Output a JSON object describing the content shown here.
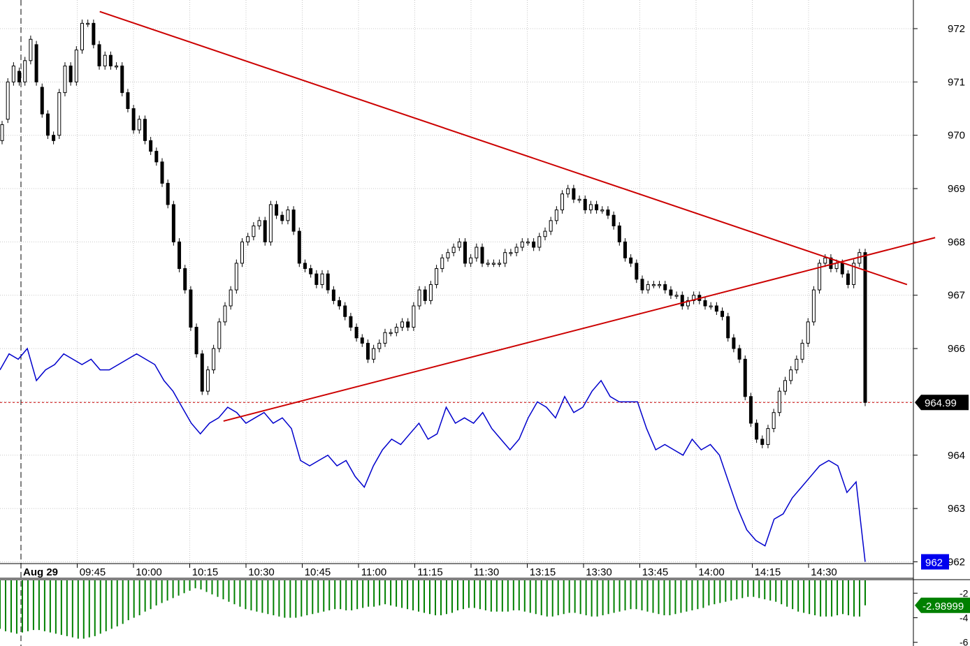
{
  "chart_data": {
    "type": "candlestick",
    "main": {
      "y_ticks": [
        962,
        963,
        964,
        965,
        966,
        967,
        968,
        969,
        970,
        971,
        972
      ],
      "y_tick_labels": [
        "962",
        "963",
        "964",
        "966",
        "967",
        "968",
        "969",
        "970",
        "971",
        "972"
      ],
      "ylim": [
        961.98,
        972.55
      ],
      "grid": true,
      "last_price": 964.99,
      "last_price_label": "964.99",
      "secondary_label": "962",
      "trendlines": [
        {
          "name": "resistance",
          "from": [
            1.4,
            972.32
          ],
          "to": [
            15.75,
            967.2
          ],
          "color": "#cc0000"
        },
        {
          "name": "support",
          "from": [
            3.6,
            964.64
          ],
          "to": [
            16.25,
            968.08
          ],
          "color": "#cc0000"
        }
      ],
      "candles": [
        [
          969.9,
          970.2
        ],
        [
          970.3,
          971.0
        ],
        [
          971.0,
          971.3
        ],
        [
          971.2,
          971.0
        ],
        [
          971.0,
          971.4
        ],
        [
          971.4,
          971.8
        ],
        [
          971.7,
          971.0
        ],
        [
          970.9,
          970.4
        ],
        [
          970.4,
          970.0
        ],
        [
          970.0,
          969.9
        ],
        [
          970.0,
          970.8
        ],
        [
          970.8,
          971.3
        ],
        [
          971.3,
          971.0
        ],
        [
          971.0,
          971.6
        ],
        [
          971.6,
          972.1
        ],
        [
          972.1,
          972.1
        ],
        [
          972.1,
          971.7
        ],
        [
          971.7,
          971.3
        ],
        [
          971.3,
          971.5
        ],
        [
          971.5,
          971.3
        ],
        [
          971.3,
          971.3
        ],
        [
          971.3,
          970.8
        ],
        [
          970.8,
          970.5
        ],
        [
          970.5,
          970.1
        ],
        [
          970.1,
          970.3
        ],
        [
          970.3,
          969.9
        ],
        [
          969.9,
          969.7
        ],
        [
          969.7,
          969.5
        ],
        [
          969.5,
          969.1
        ],
        [
          969.1,
          968.7
        ],
        [
          968.7,
          968.0
        ],
        [
          968.0,
          967.5
        ],
        [
          967.5,
          967.1
        ],
        [
          967.1,
          966.4
        ],
        [
          966.4,
          965.9
        ],
        [
          965.9,
          965.2
        ],
        [
          965.2,
          965.6
        ],
        [
          965.6,
          966.0
        ],
        [
          966.0,
          966.5
        ],
        [
          966.5,
          966.8
        ],
        [
          966.8,
          967.1
        ],
        [
          967.1,
          967.6
        ],
        [
          967.6,
          968.0
        ],
        [
          968.0,
          968.1
        ],
        [
          968.1,
          968.3
        ],
        [
          968.3,
          968.4
        ],
        [
          968.4,
          968.0
        ],
        [
          968.0,
          968.7
        ],
        [
          968.7,
          968.5
        ],
        [
          968.5,
          968.4
        ],
        [
          968.4,
          968.6
        ],
        [
          968.6,
          968.2
        ],
        [
          968.2,
          967.6
        ],
        [
          967.6,
          967.5
        ],
        [
          967.5,
          967.4
        ],
        [
          967.4,
          967.2
        ],
        [
          967.2,
          967.4
        ],
        [
          967.4,
          967.1
        ],
        [
          967.1,
          966.9
        ],
        [
          966.9,
          966.8
        ],
        [
          966.8,
          966.6
        ],
        [
          966.6,
          966.4
        ],
        [
          966.4,
          966.2
        ],
        [
          966.2,
          966.1
        ],
        [
          966.1,
          965.8
        ],
        [
          965.8,
          966.0
        ],
        [
          966.0,
          966.1
        ],
        [
          966.1,
          966.3
        ],
        [
          966.3,
          966.3
        ],
        [
          966.3,
          966.4
        ],
        [
          966.4,
          966.5
        ],
        [
          966.5,
          966.4
        ],
        [
          966.4,
          966.8
        ],
        [
          966.8,
          967.1
        ],
        [
          967.1,
          966.9
        ],
        [
          966.9,
          967.2
        ],
        [
          967.2,
          967.5
        ],
        [
          967.5,
          967.7
        ],
        [
          967.7,
          967.8
        ],
        [
          967.8,
          967.9
        ],
        [
          967.9,
          968.0
        ],
        [
          968.0,
          967.6
        ],
        [
          967.6,
          967.7
        ],
        [
          967.7,
          967.9
        ],
        [
          967.9,
          967.6
        ],
        [
          967.6,
          967.6
        ],
        [
          967.6,
          967.6
        ],
        [
          967.6,
          967.6
        ],
        [
          967.6,
          967.8
        ],
        [
          967.8,
          967.8
        ],
        [
          967.8,
          967.9
        ],
        [
          967.9,
          968.0
        ],
        [
          968.0,
          968.0
        ],
        [
          968.0,
          967.9
        ],
        [
          967.9,
          968.1
        ],
        [
          968.1,
          968.2
        ],
        [
          968.2,
          968.4
        ],
        [
          968.4,
          968.6
        ],
        [
          968.6,
          968.9
        ],
        [
          968.9,
          969.0
        ],
        [
          969.0,
          968.8
        ],
        [
          968.8,
          968.8
        ],
        [
          968.8,
          968.6
        ],
        [
          968.6,
          968.7
        ],
        [
          968.7,
          968.6
        ],
        [
          968.6,
          968.6
        ],
        [
          968.6,
          968.5
        ],
        [
          968.5,
          968.3
        ],
        [
          968.3,
          968.0
        ],
        [
          968.0,
          967.7
        ],
        [
          967.7,
          967.6
        ],
        [
          967.6,
          967.3
        ],
        [
          967.3,
          967.1
        ],
        [
          967.1,
          967.2
        ],
        [
          967.2,
          967.2
        ],
        [
          967.2,
          967.2
        ],
        [
          967.2,
          967.1
        ],
        [
          967.1,
          967.0
        ],
        [
          967.0,
          967.0
        ],
        [
          967.0,
          966.8
        ],
        [
          966.8,
          966.9
        ],
        [
          966.9,
          967.0
        ],
        [
          967.0,
          966.9
        ],
        [
          966.9,
          966.8
        ],
        [
          966.8,
          966.8
        ],
        [
          966.8,
          966.7
        ],
        [
          966.7,
          966.6
        ],
        [
          966.6,
          966.2
        ],
        [
          966.2,
          966.0
        ],
        [
          966.0,
          965.8
        ],
        [
          965.8,
          965.1
        ],
        [
          965.1,
          964.6
        ],
        [
          964.6,
          964.3
        ],
        [
          964.3,
          964.2
        ],
        [
          964.2,
          964.5
        ],
        [
          964.5,
          964.8
        ],
        [
          964.8,
          965.2
        ],
        [
          965.2,
          965.4
        ],
        [
          965.4,
          965.6
        ],
        [
          965.6,
          965.8
        ],
        [
          965.8,
          966.1
        ],
        [
          966.1,
          966.5
        ],
        [
          966.5,
          967.1
        ],
        [
          967.1,
          967.6
        ],
        [
          967.6,
          967.7
        ],
        [
          967.7,
          967.5
        ],
        [
          967.5,
          967.6
        ],
        [
          967.6,
          967.4
        ],
        [
          967.4,
          967.2
        ],
        [
          967.2,
          967.6
        ],
        [
          967.6,
          967.8
        ],
        [
          967.8,
          964.99
        ]
      ],
      "series": [
        {
          "name": "",
          "color": "#0000cc",
          "values": [
            965.6,
            965.9,
            965.8,
            966.0,
            965.4,
            965.6,
            965.7,
            965.9,
            965.8,
            965.7,
            965.8,
            965.6,
            965.6,
            965.7,
            965.8,
            965.9,
            965.8,
            965.7,
            965.4,
            965.2,
            964.9,
            964.6,
            964.4,
            964.6,
            964.7,
            964.9,
            964.8,
            964.6,
            964.7,
            964.8,
            964.6,
            964.7,
            964.5,
            963.9,
            963.8,
            963.9,
            964.0,
            963.8,
            963.9,
            963.6,
            963.4,
            963.8,
            964.1,
            964.3,
            964.2,
            964.4,
            964.6,
            964.3,
            964.4,
            964.9,
            964.6,
            964.7,
            964.6,
            964.8,
            964.5,
            964.3,
            964.1,
            964.3,
            964.7,
            965.0,
            964.9,
            964.7,
            965.1,
            964.8,
            964.9,
            965.2,
            965.4,
            965.1,
            965.0,
            965.0,
            965.0,
            964.5,
            964.1,
            964.2,
            964.1,
            964.0,
            964.3,
            964.1,
            964.2,
            964.0,
            963.5,
            963.0,
            962.6,
            962.4,
            962.3,
            962.8,
            962.9,
            963.2,
            963.4,
            963.6,
            963.8,
            963.9,
            963.8,
            963.3,
            963.5,
            962.0
          ]
        }
      ]
    },
    "x_ticks": [
      "Aug 29",
      "09:45",
      "10:00",
      "10:15",
      "10:30",
      "10:45",
      "11:00",
      "11:15",
      "11:30",
      "13:15",
      "13:30",
      "13:45",
      "14:00",
      "14:15",
      "14:30"
    ],
    "indicator": {
      "type": "bar",
      "color": "#008000",
      "y_ticks": [
        -2,
        -4,
        -6
      ],
      "y_tick_labels": [
        "-2",
        "-4",
        "-6"
      ],
      "ylim": [
        -6.3,
        -0.9
      ],
      "last_value_label": "-2.98999",
      "values": [
        -4.9,
        -5.1,
        -5.2,
        -5.3,
        -5.2,
        -5.1,
        -5.0,
        -5.0,
        -5.1,
        -5.2,
        -5.3,
        -5.4,
        -5.5,
        -5.6,
        -5.7,
        -5.7,
        -5.6,
        -5.5,
        -5.3,
        -5.1,
        -4.9,
        -4.7,
        -4.5,
        -4.2,
        -4.0,
        -3.8,
        -3.5,
        -3.3,
        -3.0,
        -2.8,
        -2.6,
        -2.4,
        -2.2,
        -2.0,
        -1.8,
        -1.6,
        -1.7,
        -1.9,
        -2.1,
        -2.3,
        -2.5,
        -2.7,
        -2.9,
        -3.1,
        -3.3,
        -3.4,
        -3.5,
        -3.6,
        -3.7,
        -3.8,
        -3.9,
        -4.0,
        -4.0,
        -4.0,
        -3.9,
        -3.8,
        -3.7,
        -3.6,
        -3.5,
        -3.4,
        -3.3,
        -3.3,
        -3.4,
        -3.4,
        -3.3,
        -3.2,
        -3.1,
        -3.1,
        -3.0,
        -2.9,
        -3.0,
        -3.1,
        -3.2,
        -3.3,
        -3.4,
        -3.5,
        -3.6,
        -3.7,
        -3.8,
        -3.8,
        -3.7,
        -3.6,
        -3.4,
        -3.3,
        -3.2,
        -3.2,
        -3.3,
        -3.4,
        -3.5,
        -3.5,
        -3.5,
        -3.5,
        -3.4,
        -3.4,
        -3.5,
        -3.6,
        -3.7,
        -3.8,
        -3.9,
        -3.9,
        -3.8,
        -3.7,
        -3.6,
        -3.6,
        -3.7,
        -3.8,
        -3.9,
        -3.9,
        -3.8,
        -3.7,
        -3.6,
        -3.5,
        -3.4,
        -3.3,
        -3.3,
        -3.4,
        -3.5,
        -3.6,
        -3.7,
        -3.8,
        -3.8,
        -3.7,
        -3.6,
        -3.5,
        -3.4,
        -3.3,
        -3.2,
        -3.0,
        -2.9,
        -2.8,
        -2.7,
        -2.6,
        -2.5,
        -2.4,
        -2.3,
        -2.3,
        -2.4,
        -2.5,
        -2.6,
        -2.7,
        -2.9,
        -3.1,
        -3.3,
        -3.5,
        -3.6,
        -3.7,
        -3.8,
        -3.9,
        -3.9,
        -3.9,
        -3.8,
        -3.7,
        -3.8,
        -3.9,
        -3.9,
        -2.99
      ]
    }
  }
}
